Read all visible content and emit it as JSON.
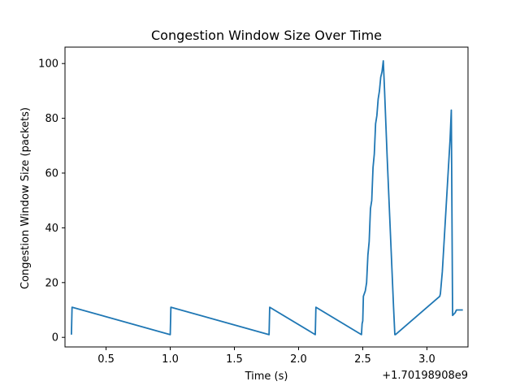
{
  "chart_data": {
    "type": "line",
    "title": "Congestion Window Size Over Time",
    "xlabel": "Time (s)",
    "ylabel": "Congestion Window Size (packets)",
    "x_offset_label": "+1.70198908e9",
    "xlim": [
      0.18,
      3.32
    ],
    "ylim": [
      -3.5,
      106
    ],
    "x_ticks": [
      0.5,
      1.0,
      1.5,
      2.0,
      2.5,
      3.0
    ],
    "x_tick_labels": [
      "0.5",
      "1.0",
      "1.5",
      "2.0",
      "2.5",
      "3.0"
    ],
    "y_ticks": [
      0,
      20,
      40,
      60,
      80,
      100
    ],
    "y_tick_labels": [
      "0",
      "20",
      "40",
      "60",
      "80",
      "100"
    ],
    "grid": false,
    "series": [
      {
        "color": "#1f77b4",
        "x": [
          0.23,
          0.235,
          1.0,
          1.005,
          1.77,
          1.775,
          2.13,
          2.135,
          2.49,
          2.495,
          2.5,
          2.505,
          2.52,
          2.53,
          2.54,
          2.55,
          2.56,
          2.57,
          2.58,
          2.59,
          2.6,
          2.61,
          2.62,
          2.63,
          2.64,
          2.65,
          2.66,
          2.67,
          2.68,
          2.69,
          2.7,
          2.71,
          2.72,
          2.73,
          2.74,
          2.75,
          2.755,
          3.1,
          3.105,
          3.12,
          3.13,
          3.14,
          3.15,
          3.16,
          3.17,
          3.18,
          3.19,
          3.2,
          3.21,
          3.22,
          3.225,
          3.23,
          3.245,
          3.28
        ],
        "y": [
          1,
          11,
          1,
          11,
          1,
          11,
          1,
          11,
          1,
          5,
          6,
          15,
          17,
          20,
          30,
          35,
          47,
          50,
          62,
          67,
          78,
          81,
          87,
          90,
          95,
          97,
          101,
          90,
          78,
          66,
          55,
          44,
          33,
          22,
          11,
          1,
          1,
          15,
          16,
          24,
          32,
          40,
          48,
          56,
          64,
          72,
          83,
          8,
          8.5,
          9,
          9.5,
          10,
          10,
          10
        ]
      }
    ]
  }
}
